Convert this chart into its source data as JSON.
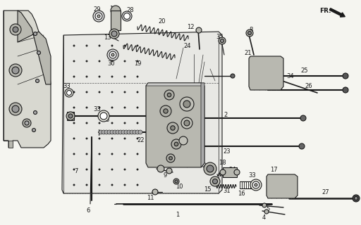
{
  "bg_color": "#f5f5f0",
  "line_color": "#1a1a1a",
  "fill_light": "#d8d8d0",
  "fill_mid": "#b8b8b0",
  "fill_dark": "#888880",
  "figsize": [
    5.12,
    3.2
  ],
  "dpi": 100
}
